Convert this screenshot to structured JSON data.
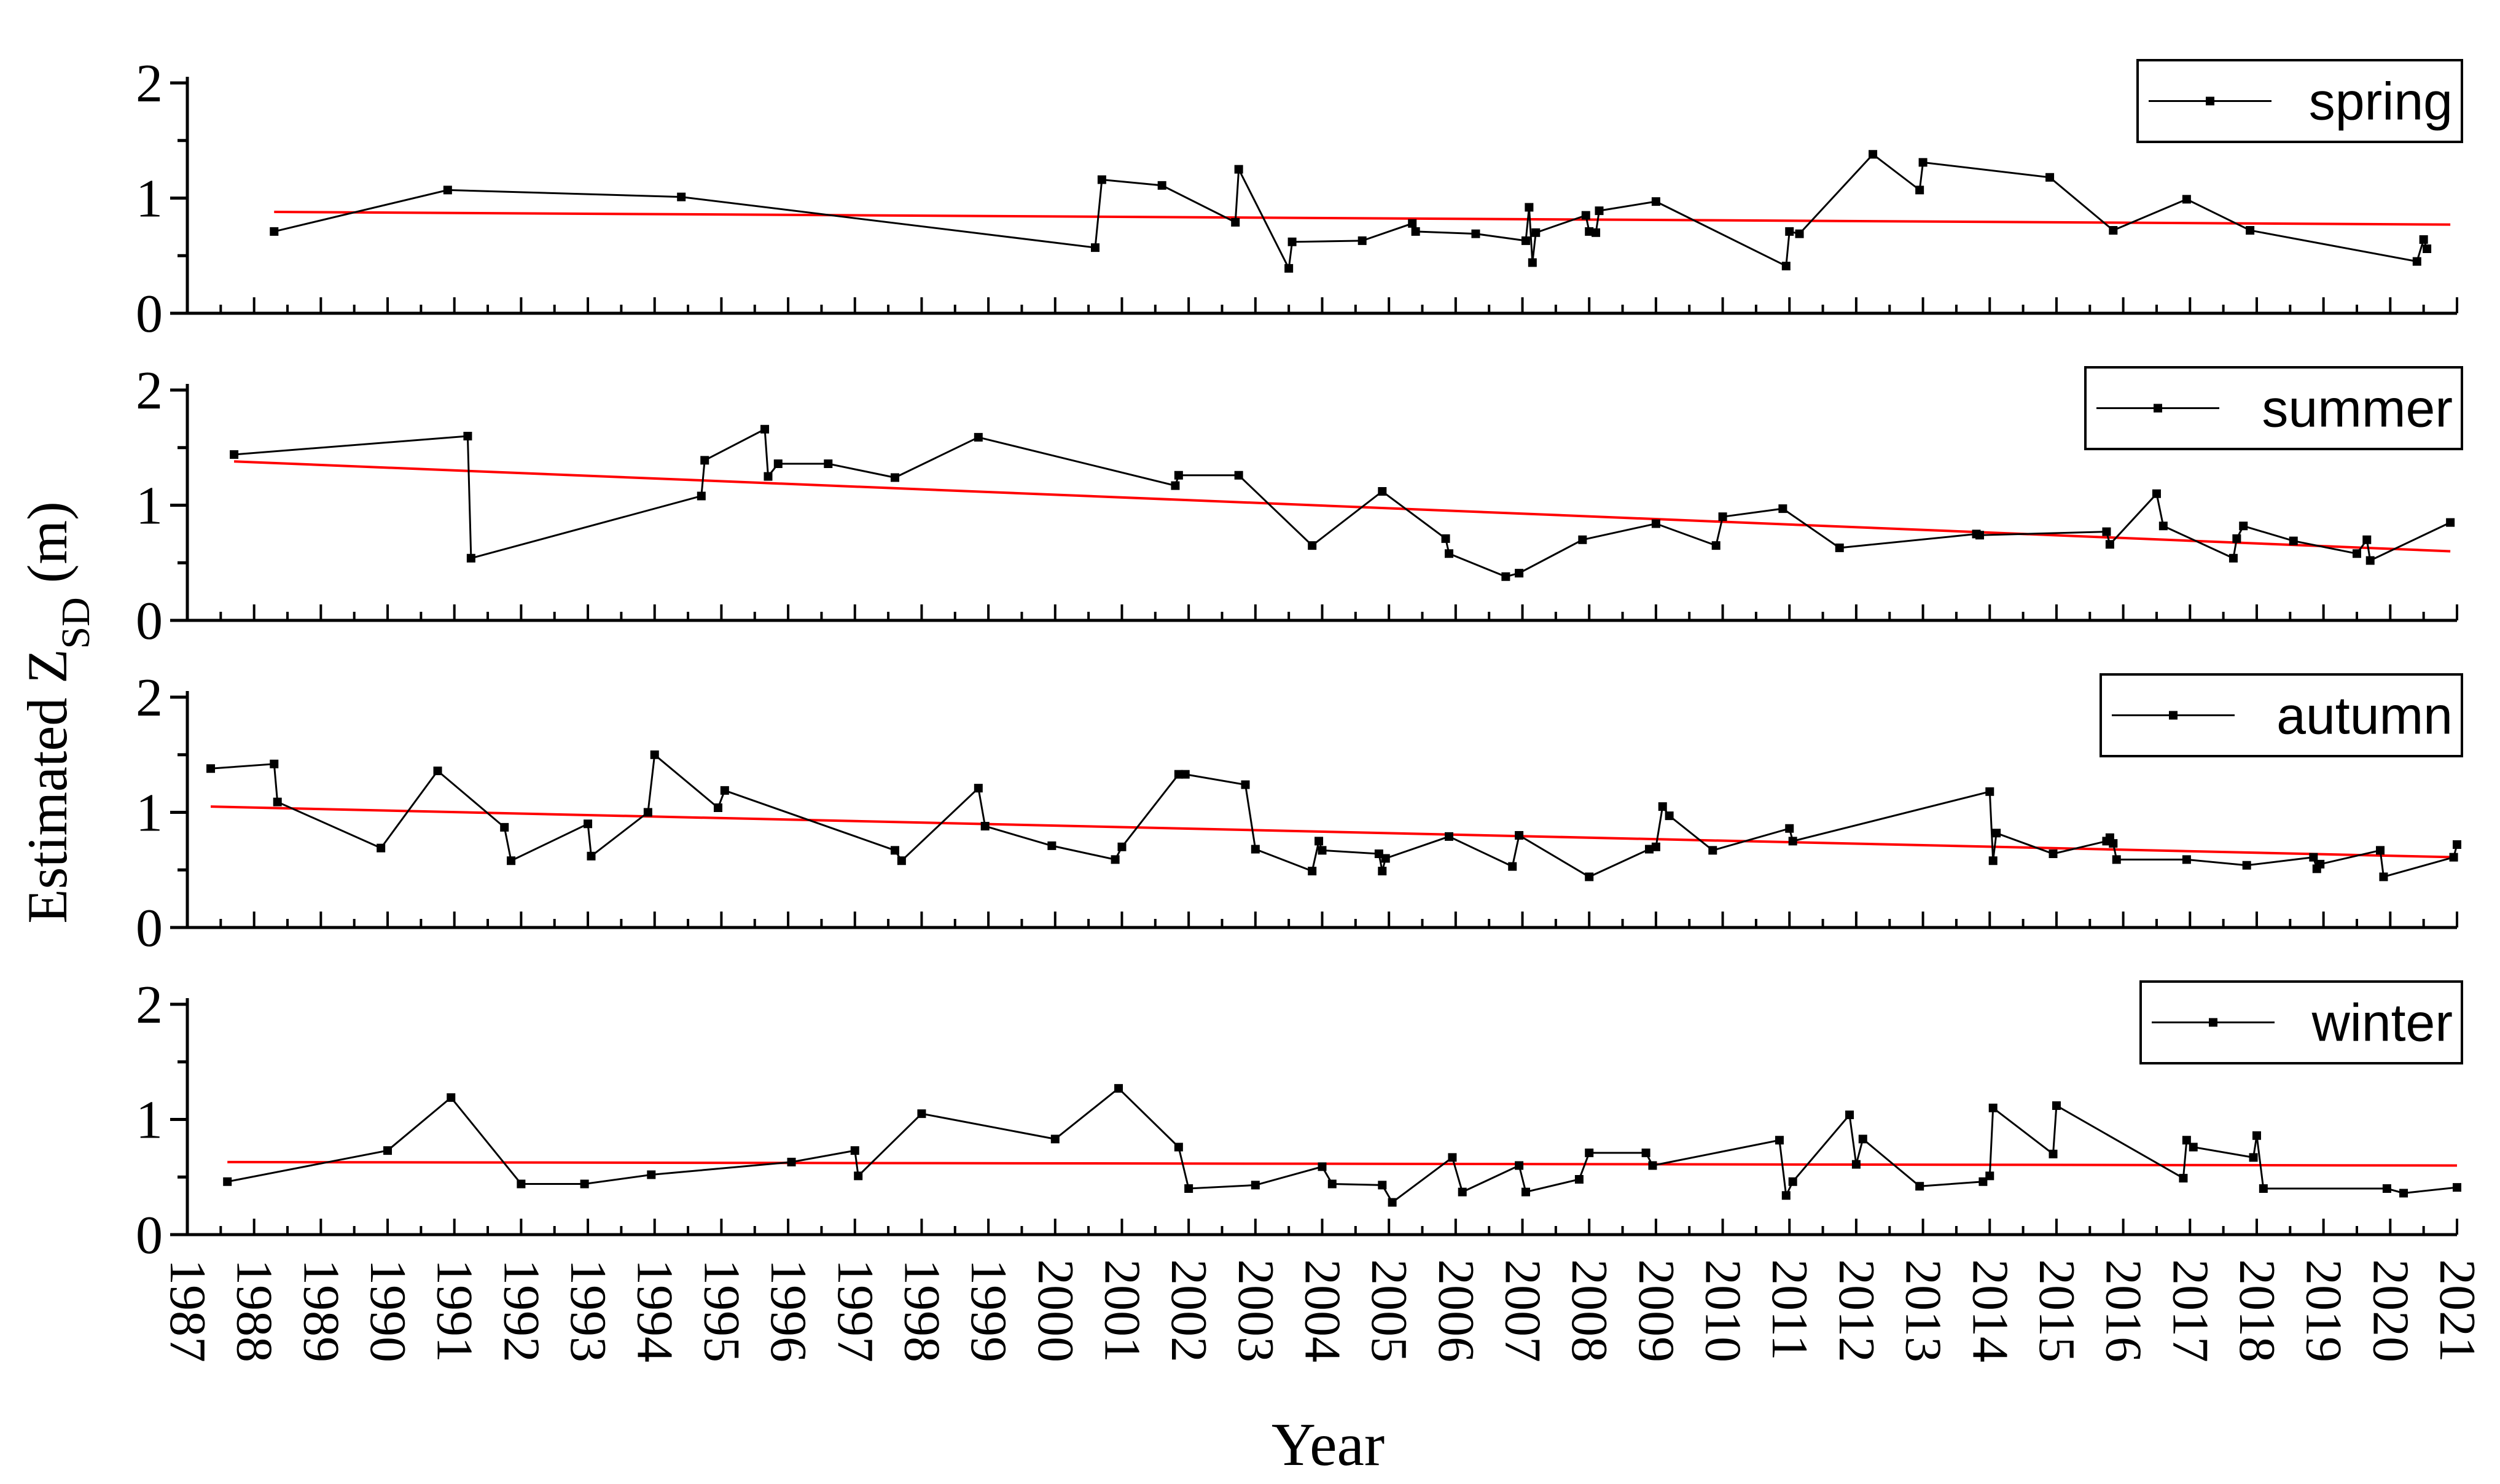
{
  "y_axis_label": "Estimated Z",
  "y_axis_label_sub": "SD",
  "y_axis_label_unit": " (m)",
  "x_axis_label": "Year",
  "colors": {
    "series_line": "#000000",
    "trend_line": "#ff0000",
    "axis": "#000000"
  },
  "chart_data": [
    {
      "type": "line",
      "legend": "spring",
      "legend_position": "top-right",
      "xlim": [
        1987,
        2021
      ],
      "ylim": [
        0,
        2
      ],
      "y_ticks": [
        "0",
        "1",
        "2"
      ],
      "x_ticks": [
        "1987",
        "1988",
        "1989",
        "1990",
        "1991",
        "1992",
        "1993",
        "1994",
        "1995",
        "1996",
        "1997",
        "1998",
        "1999",
        "2000",
        "2001",
        "2002",
        "2003",
        "2004",
        "2005",
        "2006",
        "2007",
        "2008",
        "2009",
        "2010",
        "2011",
        "2012",
        "2013",
        "2014",
        "2015",
        "2016",
        "2017",
        "2018",
        "2019",
        "2020",
        "2021"
      ],
      "series": [
        {
          "x": [
            1988.3,
            1990.9,
            1994.4,
            2000.6,
            2000.7,
            2001.6,
            2002.7,
            2002.75,
            2003.5,
            2003.55,
            2004.6,
            2005.35,
            2005.4,
            2006.3,
            2007.05,
            2007.1,
            2007.15,
            2007.2,
            2007.95,
            2008.0,
            2008.1,
            2008.15,
            2009.0,
            2010.95,
            2011.0,
            2011.15,
            2012.25,
            2012.95,
            2013.0,
            2014.9,
            2015.85,
            2016.95,
            2017.9,
            2020.4,
            2020.5,
            2020.55
          ],
          "y": [
            0.71,
            1.07,
            1.01,
            0.57,
            1.16,
            1.11,
            0.79,
            1.25,
            0.39,
            0.62,
            0.63,
            0.78,
            0.71,
            0.69,
            0.63,
            0.92,
            0.44,
            0.7,
            0.85,
            0.71,
            0.7,
            0.89,
            0.97,
            0.41,
            0.71,
            0.69,
            1.38,
            1.07,
            1.31,
            1.18,
            0.72,
            0.99,
            0.72,
            0.45,
            0.64,
            0.56
          ]
        }
      ],
      "trend": {
        "x": [
          1988.3,
          2020.9
        ],
        "y": [
          0.88,
          0.77
        ]
      }
    },
    {
      "type": "line",
      "legend": "summer",
      "legend_position": "top-right",
      "xlim": [
        1987,
        2021
      ],
      "ylim": [
        0,
        2
      ],
      "y_ticks": [
        "0",
        "1",
        "2"
      ],
      "x_ticks": [
        "1987",
        "1988",
        "1989",
        "1990",
        "1991",
        "1992",
        "1993",
        "1994",
        "1995",
        "1996",
        "1997",
        "1998",
        "1999",
        "2000",
        "2001",
        "2002",
        "2003",
        "2004",
        "2005",
        "2006",
        "2007",
        "2008",
        "2009",
        "2010",
        "2011",
        "2012",
        "2013",
        "2014",
        "2015",
        "2016",
        "2017",
        "2018",
        "2019",
        "2020",
        "2021"
      ],
      "series": [
        {
          "x": [
            1987.7,
            1991.2,
            1991.25,
            1994.7,
            1994.75,
            1995.65,
            1995.7,
            1995.85,
            1996.6,
            1997.6,
            1998.85,
            2001.8,
            2001.85,
            2002.75,
            2003.85,
            2004.9,
            2005.85,
            2005.9,
            2006.75,
            2006.95,
            2007.9,
            2009.0,
            2009.9,
            2010.0,
            2010.9,
            2011.75,
            2013.8,
            2013.85,
            2015.75,
            2015.8,
            2016.5,
            2016.6,
            2017.65,
            2017.7,
            2017.8,
            2018.55,
            2019.5,
            2019.65,
            2019.7,
            2020.9
          ],
          "y": [
            1.44,
            1.6,
            0.54,
            1.08,
            1.39,
            1.66,
            1.25,
            1.36,
            1.36,
            1.24,
            1.59,
            1.17,
            1.26,
            1.26,
            0.65,
            1.12,
            0.71,
            0.58,
            0.38,
            0.41,
            0.7,
            0.84,
            0.65,
            0.9,
            0.97,
            0.63,
            0.75,
            0.74,
            0.77,
            0.66,
            1.1,
            0.82,
            0.54,
            0.71,
            0.82,
            0.69,
            0.58,
            0.7,
            0.52,
            0.85
          ]
        }
      ],
      "trend": {
        "x": [
          1987.7,
          2020.9
        ],
        "y": [
          1.38,
          0.6
        ]
      }
    },
    {
      "type": "line",
      "legend": "autumn",
      "legend_position": "top-right",
      "xlim": [
        1987,
        2021
      ],
      "ylim": [
        0,
        2
      ],
      "y_ticks": [
        "0",
        "1",
        "2"
      ],
      "x_ticks": [
        "1987",
        "1988",
        "1989",
        "1990",
        "1991",
        "1992",
        "1993",
        "1994",
        "1995",
        "1996",
        "1997",
        "1998",
        "1999",
        "2000",
        "2001",
        "2002",
        "2003",
        "2004",
        "2005",
        "2006",
        "2007",
        "2008",
        "2009",
        "2010",
        "2011",
        "2012",
        "2013",
        "2014",
        "2015",
        "2016",
        "2017",
        "2018",
        "2019",
        "2020",
        "2021"
      ],
      "series": [
        {
          "x": [
            1987.35,
            1988.3,
            1988.35,
            1989.9,
            1990.75,
            1991.75,
            1991.85,
            1993.0,
            1993.05,
            1993.9,
            1994.0,
            1994.95,
            1995.05,
            1997.6,
            1997.7,
            1998.85,
            1998.95,
            1999.95,
            2000.9,
            2001.0,
            2001.85,
            2001.95,
            2002.85,
            2003.0,
            2003.85,
            2003.95,
            2004.0,
            2004.85,
            2004.9,
            2004.95,
            2005.9,
            2006.85,
            2006.95,
            2008.0,
            2008.9,
            2009.0,
            2009.1,
            2009.2,
            2009.85,
            2011.0,
            2011.05,
            2014.0,
            2014.05,
            2014.1,
            2014.95,
            2015.75,
            2015.8,
            2015.85,
            2015.9,
            2016.95,
            2017.85,
            2018.85,
            2018.9,
            2018.95,
            2019.85,
            2019.9,
            2020.95,
            2021.0
          ],
          "y": [
            1.38,
            1.42,
            1.09,
            0.69,
            1.36,
            0.87,
            0.58,
            0.9,
            0.62,
            1.0,
            1.5,
            1.04,
            1.19,
            0.67,
            0.58,
            1.21,
            0.88,
            0.71,
            0.59,
            0.7,
            1.33,
            1.33,
            1.24,
            0.68,
            0.49,
            0.75,
            0.67,
            0.64,
            0.49,
            0.6,
            0.79,
            0.53,
            0.8,
            0.44,
            0.68,
            0.7,
            1.05,
            0.97,
            0.67,
            0.86,
            0.75,
            1.18,
            0.58,
            0.82,
            0.64,
            0.75,
            0.78,
            0.73,
            0.59,
            0.59,
            0.54,
            0.61,
            0.51,
            0.55,
            0.67,
            0.44,
            0.61,
            0.72
          ]
        }
      ],
      "trend": {
        "x": [
          1987.35,
          2021.0
        ],
        "y": [
          1.05,
          0.61
        ]
      }
    },
    {
      "type": "line",
      "legend": "winter",
      "legend_position": "top-right",
      "xlim": [
        1987,
        2021
      ],
      "ylim": [
        0,
        2
      ],
      "y_ticks": [
        "0",
        "1",
        "2"
      ],
      "x_ticks": [
        "1987",
        "1988",
        "1989",
        "1990",
        "1991",
        "1992",
        "1993",
        "1994",
        "1995",
        "1996",
        "1997",
        "1998",
        "1999",
        "2000",
        "2001",
        "2002",
        "2003",
        "2004",
        "2005",
        "2006",
        "2007",
        "2008",
        "2009",
        "2010",
        "2011",
        "2012",
        "2013",
        "2014",
        "2015",
        "2016",
        "2017",
        "2018",
        "2019",
        "2020",
        "2021"
      ],
      "series": [
        {
          "x": [
            1987.6,
            1990.0,
            1990.95,
            1992.0,
            1992.95,
            1993.95,
            1996.05,
            1997.0,
            1997.05,
            1998.0,
            2000.0,
            2000.95,
            2001.85,
            2002.0,
            2003.0,
            2004.0,
            2004.15,
            2004.9,
            2005.05,
            2005.95,
            2006.1,
            2006.95,
            2007.05,
            2007.85,
            2008.0,
            2008.85,
            2008.95,
            2010.85,
            2010.95,
            2011.05,
            2011.9,
            2012.0,
            2012.1,
            2012.95,
            2013.9,
            2014.0,
            2014.05,
            2014.95,
            2015.0,
            2016.9,
            2016.95,
            2017.05,
            2017.95,
            2018.0,
            2018.1,
            2019.95,
            2020.2,
            2021.0
          ],
          "y": [
            0.46,
            0.73,
            1.19,
            0.44,
            0.44,
            0.52,
            0.63,
            0.73,
            0.51,
            1.05,
            0.83,
            1.27,
            0.76,
            0.4,
            0.43,
            0.59,
            0.44,
            0.43,
            0.28,
            0.67,
            0.37,
            0.6,
            0.37,
            0.48,
            0.71,
            0.71,
            0.6,
            0.82,
            0.34,
            0.46,
            1.04,
            0.61,
            0.83,
            0.42,
            0.46,
            0.51,
            1.1,
            0.7,
            1.12,
            0.49,
            0.82,
            0.76,
            0.67,
            0.86,
            0.4,
            0.4,
            0.36,
            0.41
          ]
        }
      ],
      "trend": {
        "x": [
          1987.6,
          2021.0
        ],
        "y": [
          0.63,
          0.6
        ]
      }
    }
  ]
}
